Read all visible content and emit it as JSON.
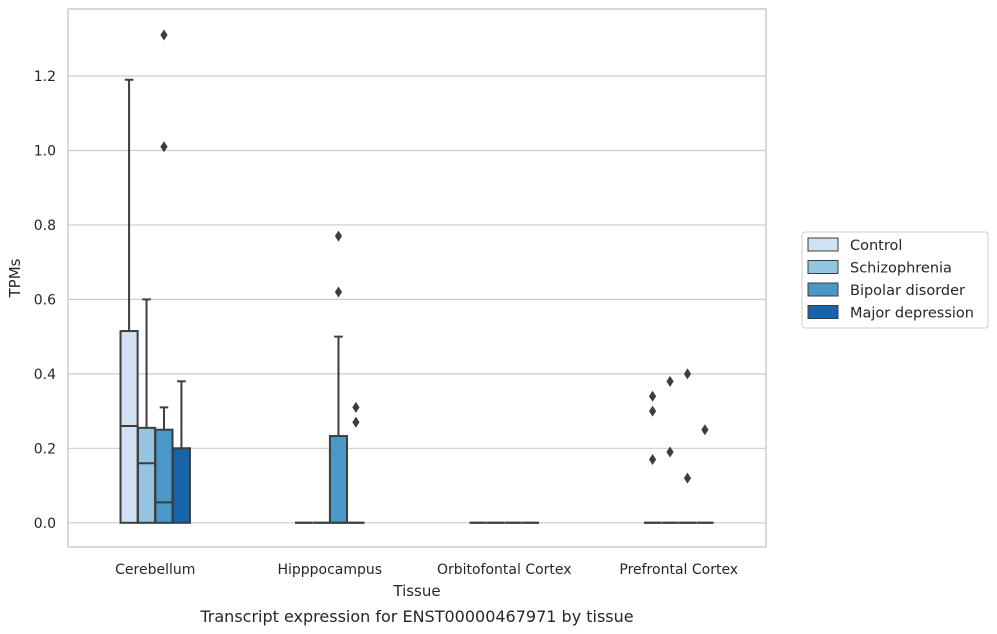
{
  "chart_data": {
    "type": "box",
    "caption": "Transcript expression for ENST00000467971 by tissue",
    "xlabel": "Tissue",
    "ylabel": "TPMs",
    "ylim": [
      -0.065,
      1.38
    ],
    "yticks": [
      0.0,
      0.2,
      0.4,
      0.6,
      0.8,
      1.0,
      1.2
    ],
    "grid": "horizontal",
    "legend_position": "right",
    "categories": [
      "Cerebellum",
      "Hipppocampus",
      "Orbitofontal Cortex",
      "Prefrontal Cortex"
    ],
    "series": [
      {
        "name": "Control",
        "color": "#d0e1f2",
        "boxes": [
          {
            "q1": 0.0,
            "median": 0.26,
            "q3": 0.515,
            "whislo": 0.0,
            "whishi": 1.19,
            "fliers": []
          },
          {
            "q1": 0.0,
            "median": 0.0,
            "q3": 0.0,
            "whislo": 0.0,
            "whishi": 0.0,
            "fliers": []
          },
          {
            "q1": 0.0,
            "median": 0.0,
            "q3": 0.0,
            "whislo": 0.0,
            "whishi": 0.0,
            "fliers": []
          },
          {
            "q1": 0.0,
            "median": 0.0,
            "q3": 0.0,
            "whislo": 0.0,
            "whishi": 0.0,
            "fliers": [
              0.17,
              0.3,
              0.34
            ]
          }
        ]
      },
      {
        "name": "Schizophrenia",
        "color": "#94c4df",
        "boxes": [
          {
            "q1": 0.0,
            "median": 0.16,
            "q3": 0.255,
            "whislo": 0.0,
            "whishi": 0.6,
            "fliers": []
          },
          {
            "q1": 0.0,
            "median": 0.0,
            "q3": 0.0,
            "whislo": 0.0,
            "whishi": 0.0,
            "fliers": []
          },
          {
            "q1": 0.0,
            "median": 0.0,
            "q3": 0.0,
            "whislo": 0.0,
            "whishi": 0.0,
            "fliers": []
          },
          {
            "q1": 0.0,
            "median": 0.0,
            "q3": 0.0,
            "whislo": 0.0,
            "whishi": 0.0,
            "fliers": [
              0.19,
              0.38
            ]
          }
        ]
      },
      {
        "name": "Bipolar disorder",
        "color": "#4a98c9",
        "boxes": [
          {
            "q1": 0.0,
            "median": 0.055,
            "q3": 0.25,
            "whislo": 0.0,
            "whishi": 0.31,
            "fliers": [
              1.01,
              1.31
            ]
          },
          {
            "q1": 0.0,
            "median": 0.0,
            "q3": 0.233,
            "whislo": 0.0,
            "whishi": 0.5,
            "fliers": [
              0.62,
              0.77
            ]
          },
          {
            "q1": 0.0,
            "median": 0.0,
            "q3": 0.0,
            "whislo": 0.0,
            "whishi": 0.0,
            "fliers": []
          },
          {
            "q1": 0.0,
            "median": 0.0,
            "q3": 0.0,
            "whislo": 0.0,
            "whishi": 0.0,
            "fliers": [
              0.12,
              0.4
            ]
          }
        ]
      },
      {
        "name": "Major depression",
        "color": "#1764ab",
        "boxes": [
          {
            "q1": 0.0,
            "median": 0.2,
            "q3": 0.2,
            "whislo": 0.0,
            "whishi": 0.38,
            "fliers": []
          },
          {
            "q1": 0.0,
            "median": 0.0,
            "q3": 0.0,
            "whislo": 0.0,
            "whishi": 0.0,
            "fliers": [
              0.27,
              0.31
            ]
          },
          {
            "q1": 0.0,
            "median": 0.0,
            "q3": 0.0,
            "whislo": 0.0,
            "whishi": 0.0,
            "fliers": []
          },
          {
            "q1": 0.0,
            "median": 0.0,
            "q3": 0.0,
            "whislo": 0.0,
            "whishi": 0.0,
            "fliers": [
              0.25
            ]
          }
        ]
      }
    ]
  }
}
